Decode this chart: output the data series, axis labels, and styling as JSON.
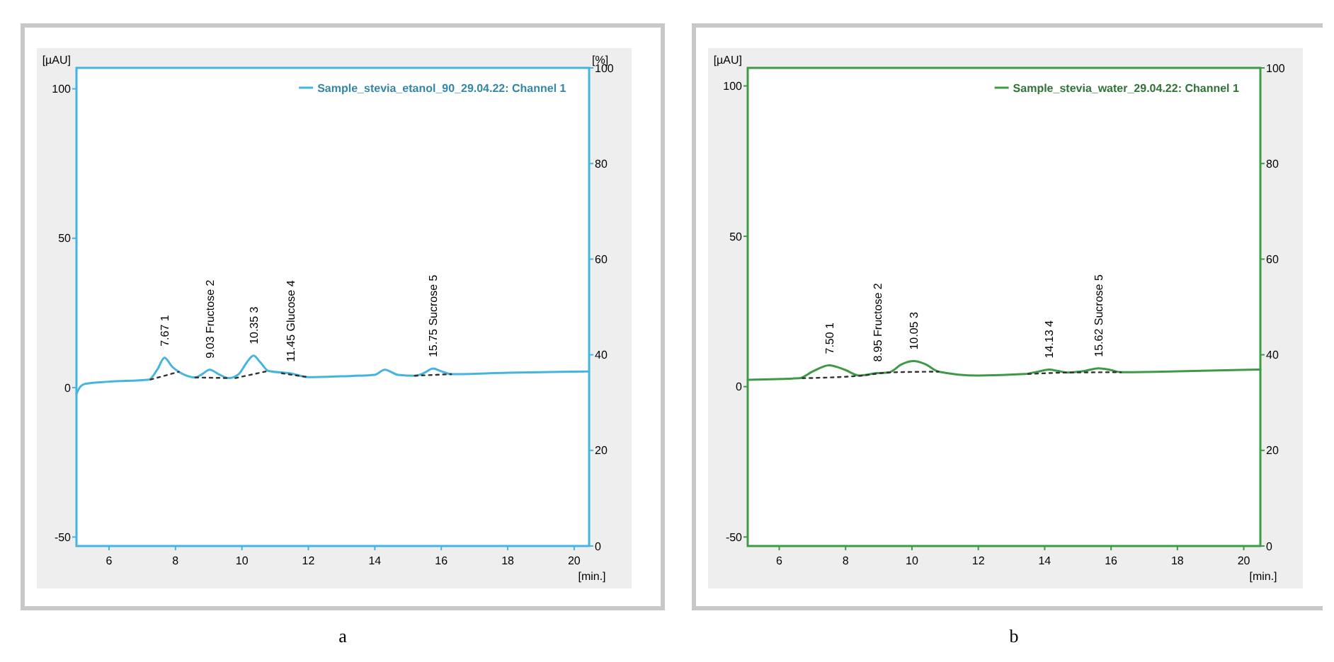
{
  "chart_data": [
    {
      "type": "line",
      "title": "a",
      "xlabel": "[min.]",
      "ylabel": "[µAU]",
      "y2label": "[%]",
      "xlim": [
        5.02,
        20.45
      ],
      "xticks": [
        6,
        8,
        10,
        12,
        14,
        16,
        18,
        20
      ],
      "ylim": [
        -53,
        107
      ],
      "yticks": [
        -50,
        0,
        50,
        100
      ],
      "y2lim": [
        0,
        100
      ],
      "y2ticks": [
        0,
        20,
        40,
        60,
        80,
        100
      ],
      "legend": "top right",
      "grid": false,
      "series": [
        {
          "name": "Sample_stevia_etanol_90_29.04.22: Channel 1",
          "color": "#45b4de",
          "line_style": "solid",
          "x": [
            5.02,
            5.15,
            5.3,
            6,
            7.2,
            7.45,
            7.67,
            7.9,
            8.1,
            8.6,
            8.8,
            9.03,
            9.3,
            9.6,
            9.9,
            10.15,
            10.35,
            10.55,
            10.8,
            11.45,
            12,
            13,
            14,
            14.3,
            14.7,
            15.2,
            15.5,
            15.75,
            16,
            16.3,
            18,
            20.45
          ],
          "values": [
            -2,
            0.5,
            1.3,
            2,
            2.7,
            6,
            10,
            7,
            5.3,
            3.4,
            4.5,
            6,
            4.5,
            3.2,
            4.5,
            8.5,
            10.7,
            8.5,
            5.6,
            4.8,
            3.5,
            3.8,
            4.3,
            6,
            4.3,
            4,
            5,
            6.4,
            5.5,
            4.5,
            5,
            5.4
          ]
        },
        {
          "color": "#333333",
          "line_style": "dotted",
          "x": [
            7.25,
            8.1
          ],
          "values": [
            2.7,
            5.3
          ]
        },
        {
          "color": "#333333",
          "line_style": "dotted",
          "x": [
            8.6,
            9.6
          ],
          "values": [
            3.4,
            3.2
          ]
        },
        {
          "color": "#333333",
          "line_style": "dotted",
          "x": [
            9.8,
            10.8
          ],
          "values": [
            3.2,
            5.6
          ]
        },
        {
          "color": "#333333",
          "line_style": "dotted",
          "x": [
            11.2,
            12
          ],
          "values": [
            4.8,
            3.5
          ]
        },
        {
          "color": "#333333",
          "line_style": "dotted",
          "x": [
            15.2,
            16.3
          ],
          "values": [
            4,
            4.5
          ]
        }
      ],
      "annotations": [
        {
          "text": "7.67   1",
          "x": 7.67,
          "y": 10
        },
        {
          "text": "9.03 Fructose   2",
          "x": 9.03,
          "y": 6
        },
        {
          "text": "10.35   3",
          "x": 10.35,
          "y": 10.7
        },
        {
          "text": "11.45 Glucose   4",
          "x": 11.45,
          "y": 4.8
        },
        {
          "text": "15.75 Sucrose   5",
          "x": 15.75,
          "y": 6.4
        }
      ]
    },
    {
      "type": "line",
      "title": "b",
      "xlabel": "[min.]",
      "ylabel": "[µAU]",
      "xlim": [
        5.05,
        20.5
      ],
      "xticks": [
        6,
        8,
        10,
        12,
        14,
        16,
        18,
        20
      ],
      "ylim": [
        -53,
        106
      ],
      "yticks": [
        -50,
        0,
        50,
        100
      ],
      "y2lim": [
        0,
        100
      ],
      "y2ticks": [
        0,
        20,
        40,
        60,
        80,
        100
      ],
      "legend": "top right",
      "grid": false,
      "series": [
        {
          "name": "Sample_stevia_water_29.04.22: Channel 1",
          "color": "#3f9a48",
          "line_style": "solid",
          "x": [
            5.05,
            6.6,
            7,
            7.5,
            8,
            8.4,
            8.95,
            9.3,
            9.7,
            10.05,
            10.4,
            10.8,
            12,
            13.4,
            13.8,
            14.13,
            14.4,
            14.7,
            15.2,
            15.62,
            16,
            16.3,
            18,
            20.5
          ],
          "values": [
            2.3,
            2.8,
            5,
            7.1,
            5.5,
            3.7,
            4.5,
            4.7,
            7.5,
            8.5,
            7.5,
            5,
            3.7,
            4.2,
            5,
            5.7,
            5.2,
            4.7,
            5.2,
            6.1,
            5.5,
            4.8,
            5.1,
            5.7
          ]
        },
        {
          "color": "#333333",
          "line_style": "dotted",
          "x": [
            6.7,
            8.5,
            9.3,
            10.8
          ],
          "values": [
            2.8,
            3.7,
            4.7,
            5
          ]
        },
        {
          "color": "#333333",
          "line_style": "dotted",
          "x": [
            13.5,
            14.8,
            16.3
          ],
          "values": [
            4.2,
            4.7,
            4.8
          ]
        }
      ],
      "annotations": [
        {
          "text": "7.50   1",
          "x": 7.5,
          "y": 7.1
        },
        {
          "text": "8.95 Fructose   2",
          "x": 8.95,
          "y": 4.5
        },
        {
          "text": "10.05   3",
          "x": 10.05,
          "y": 8.5
        },
        {
          "text": "14.13   4",
          "x": 14.13,
          "y": 5.7
        },
        {
          "text": "15.62 Sucrose   5",
          "x": 15.62,
          "y": 6.1
        }
      ]
    }
  ]
}
